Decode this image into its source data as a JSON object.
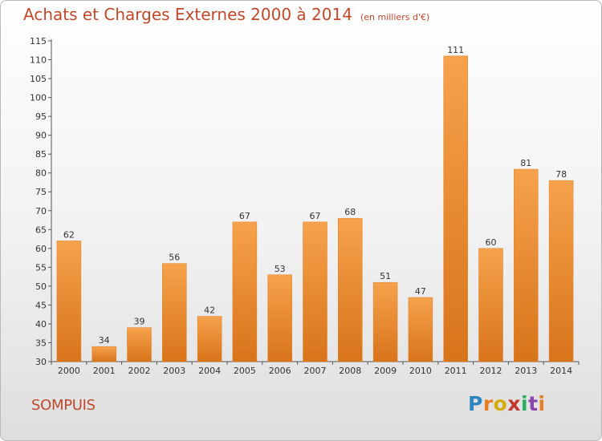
{
  "title": "Achats et Charges Externes 2000 à 2014",
  "subtitle": "(en milliers d'€)",
  "town": "SOMPUIS",
  "logo": {
    "text": "Proxiti",
    "colors": [
      "#2e86c1",
      "#e67e22",
      "#d4ac0d",
      "#c0392b",
      "#27ae60",
      "#8e44ad",
      "#e67e22"
    ]
  },
  "chart_data": {
    "type": "bar",
    "categories": [
      "2000",
      "2001",
      "2002",
      "2003",
      "2004",
      "2005",
      "2006",
      "2007",
      "2008",
      "2009",
      "2010",
      "2011",
      "2012",
      "2013",
      "2014"
    ],
    "values": [
      62,
      34,
      39,
      56,
      42,
      67,
      53,
      67,
      68,
      51,
      47,
      111,
      60,
      81,
      78
    ],
    "ylim": [
      30,
      115
    ],
    "yticks": [
      30,
      35,
      40,
      45,
      50,
      55,
      60,
      65,
      70,
      75,
      80,
      85,
      90,
      95,
      100,
      105,
      110,
      115
    ],
    "grid": false,
    "bar_color": "#f08a24"
  }
}
